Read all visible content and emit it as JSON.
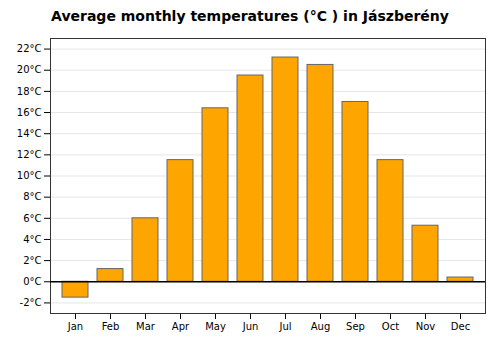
{
  "chart_data": {
    "type": "bar",
    "title": "Average monthly temperatures (°C ) in Jászberény",
    "categories": [
      "Jan",
      "Feb",
      "Mar",
      "Apr",
      "May",
      "Jun",
      "Jul",
      "Aug",
      "Sep",
      "Oct",
      "Nov",
      "Dec"
    ],
    "values": [
      -1.5,
      1.2,
      6.0,
      11.5,
      16.4,
      19.5,
      21.2,
      20.5,
      17.0,
      11.5,
      5.3,
      0.4
    ],
    "color": "#FFA500",
    "ylim": [
      -3,
      23
    ],
    "yticks": [
      {
        "value": -2,
        "label": "-2°C"
      },
      {
        "value": 0,
        "label": "0°C"
      },
      {
        "value": 2,
        "label": "2°C"
      },
      {
        "value": 4,
        "label": "4°C"
      },
      {
        "value": 6,
        "label": "6°C"
      },
      {
        "value": 8,
        "label": "8°C"
      },
      {
        "value": 10,
        "label": "10°C"
      },
      {
        "value": 12,
        "label": "12°C"
      },
      {
        "value": 14,
        "label": "14°C"
      },
      {
        "value": 16,
        "label": "16°C"
      },
      {
        "value": 18,
        "label": "18°C"
      },
      {
        "value": 20,
        "label": "20°C"
      },
      {
        "value": 22,
        "label": "22°C"
      }
    ],
    "grid": true
  }
}
